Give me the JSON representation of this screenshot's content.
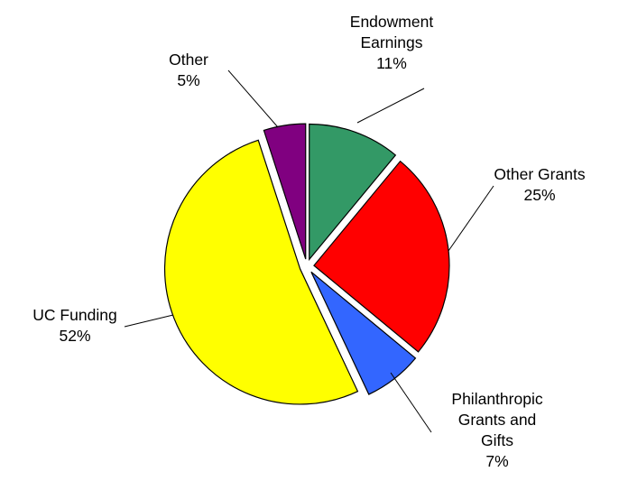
{
  "chart_data": {
    "type": "pie",
    "title": "",
    "slices": [
      {
        "label_lines": [
          "Endowment",
          "Earnings"
        ],
        "pct_text": "11%",
        "value": 11,
        "color": "#339966"
      },
      {
        "label_lines": [
          "Other Grants"
        ],
        "pct_text": "25%",
        "value": 25,
        "color": "#ff0000"
      },
      {
        "label_lines": [
          "Philanthropic",
          "Grants and",
          "Gifts"
        ],
        "pct_text": "7%",
        "value": 7,
        "color": "#3366ff"
      },
      {
        "label_lines": [
          "UC Funding"
        ],
        "pct_text": "52%",
        "value": 52,
        "color": "#ffff00"
      },
      {
        "label_lines": [
          "Other"
        ],
        "pct_text": "5%",
        "value": 5,
        "color": "#800080"
      }
    ],
    "exploded": true,
    "legend": "none"
  }
}
